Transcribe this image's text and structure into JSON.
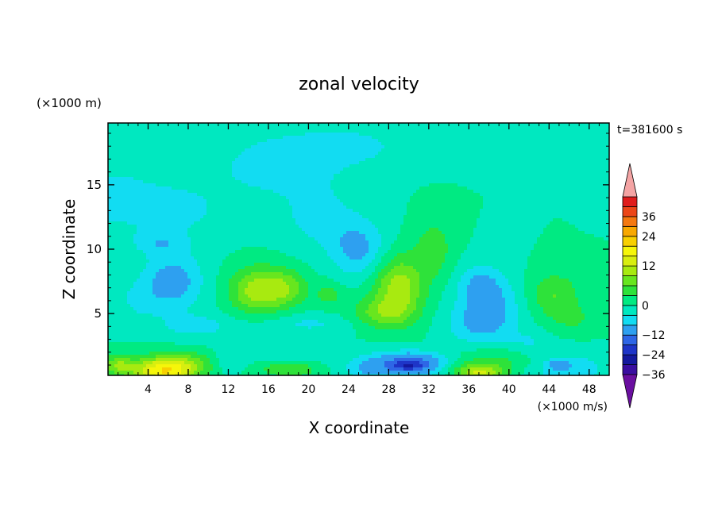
{
  "chart_data": {
    "type": "heatmap",
    "title": "zonal velocity",
    "xlabel": "X coordinate",
    "ylabel": "Z coordinate",
    "x_unit": "(×1000 m/s)",
    "y_unit": "(×1000 m)",
    "time_label": "t=381600 s",
    "xlim": [
      0,
      50
    ],
    "ylim": [
      0.2,
      19.8
    ],
    "x_ticks": [
      "4",
      "8",
      "12",
      "16",
      "20",
      "24",
      "28",
      "32",
      "36",
      "40",
      "44",
      "48"
    ],
    "y_ticks": [
      "5",
      "10",
      "15"
    ],
    "colorbar": {
      "ticks": [
        "36",
        "24",
        "12",
        "0",
        "−12",
        "−24",
        "−36"
      ],
      "levels": [
        {
          "v": -42,
          "color": "#6a0fa0"
        },
        {
          "v": -36,
          "color": "#3a0ea0"
        },
        {
          "v": -30,
          "color": "#14199e"
        },
        {
          "v": -24,
          "color": "#1e35c8"
        },
        {
          "v": -18,
          "color": "#2e66e6"
        },
        {
          "v": -12,
          "color": "#2ea0f0"
        },
        {
          "v": -6,
          "color": "#12dcf2"
        },
        {
          "v": -3,
          "color": "#00e8c0"
        },
        {
          "v": 0,
          "color": "#00ea82"
        },
        {
          "v": 3,
          "color": "#2ee23a"
        },
        {
          "v": 6,
          "color": "#68e61e"
        },
        {
          "v": 9,
          "color": "#a8ea10"
        },
        {
          "v": 12,
          "color": "#d8ee10"
        },
        {
          "v": 15,
          "color": "#f6f60a"
        },
        {
          "v": 18,
          "color": "#f8d000"
        },
        {
          "v": 24,
          "color": "#f8a800"
        },
        {
          "v": 30,
          "color": "#f47810"
        },
        {
          "v": 36,
          "color": "#ec4618"
        },
        {
          "v": 42,
          "color": "#e01c1c"
        },
        {
          "v": 48,
          "color": "#f4a4a4"
        }
      ]
    },
    "features": [
      {
        "x": 0,
        "z": 14,
        "sx": 6,
        "sz": 3,
        "a": -4
      },
      {
        "x": 8,
        "z": 13,
        "sx": 5,
        "sz": 2.5,
        "a": -3
      },
      {
        "x": 5,
        "z": 10.5,
        "sx": 2.5,
        "sz": 0.9,
        "a": -4
      },
      {
        "x": 6.5,
        "z": 7.5,
        "sx": 3,
        "sz": 2.2,
        "a": -8
      },
      {
        "x": 3,
        "z": 6,
        "sx": 2.5,
        "sz": 1.6,
        "a": -3
      },
      {
        "x": 17,
        "z": 16.5,
        "sx": 6,
        "sz": 2.3,
        "a": -5
      },
      {
        "x": 21,
        "z": 12.5,
        "sx": 4,
        "sz": 2.5,
        "a": -4
      },
      {
        "x": 24,
        "z": 18,
        "sx": 6,
        "sz": 1.6,
        "a": -4
      },
      {
        "x": 25,
        "z": 10,
        "sx": 2.8,
        "sz": 2.2,
        "a": -7
      },
      {
        "x": 20,
        "z": 4.2,
        "sx": 5,
        "sz": 0.8,
        "a": -3.5
      },
      {
        "x": 9,
        "z": 4,
        "sx": 4,
        "sz": 1,
        "a": -4
      },
      {
        "x": 15,
        "z": 6.8,
        "sx": 2.8,
        "sz": 1.8,
        "a": 11
      },
      {
        "x": 18,
        "z": 7,
        "sx": 2,
        "sz": 1.4,
        "a": 6
      },
      {
        "x": 29,
        "z": 7,
        "sx": 2.5,
        "sz": 2.5,
        "a": 11
      },
      {
        "x": 27,
        "z": 5,
        "sx": 3,
        "sz": 1.2,
        "a": 6
      },
      {
        "x": 32.5,
        "z": 10,
        "sx": 1.8,
        "sz": 2.2,
        "a": 5
      },
      {
        "x": 22,
        "z": 6.5,
        "sx": 1.5,
        "sz": 1,
        "a": 4
      },
      {
        "x": 38,
        "z": 5.5,
        "sx": 3,
        "sz": 2.5,
        "a": -8
      },
      {
        "x": 37,
        "z": 7.5,
        "sx": 2,
        "sz": 1.3,
        "a": -4
      },
      {
        "x": 36,
        "z": 4,
        "sx": 3,
        "sz": 1.5,
        "a": -3
      },
      {
        "x": 44.5,
        "z": 6.5,
        "sx": 2.5,
        "sz": 1.7,
        "a": 6
      },
      {
        "x": 46.5,
        "z": 4.5,
        "sx": 2.5,
        "sz": 1.2,
        "a": 3
      },
      {
        "x": 46,
        "z": 0.6,
        "sx": 4,
        "sz": 1.5,
        "a": -5
      },
      {
        "x": 45,
        "z": 1,
        "sx": 1,
        "sz": 0.35,
        "a": -8
      },
      {
        "x": 5.5,
        "z": 0.5,
        "sx": 3.2,
        "sz": 1.1,
        "a": 17
      },
      {
        "x": 8,
        "z": 1.2,
        "sx": 3,
        "sz": 0.9,
        "a": 5
      },
      {
        "x": 18,
        "z": 0.7,
        "sx": 3,
        "sz": 0.7,
        "a": 6
      },
      {
        "x": 18,
        "z": 2,
        "sx": 6,
        "sz": 0.9,
        "a": -3
      },
      {
        "x": 30,
        "z": 1.1,
        "sx": 3.5,
        "sz": 0.9,
        "a": -14
      },
      {
        "x": 30,
        "z": 1,
        "sx": 1.5,
        "sz": 0.4,
        "a": -12
      },
      {
        "x": 26,
        "z": 0.6,
        "sx": 2.5,
        "sz": 0.9,
        "a": -5
      },
      {
        "x": 37,
        "z": 0.4,
        "sx": 2.5,
        "sz": 0.7,
        "a": 12
      },
      {
        "x": 39,
        "z": 1.5,
        "sx": 4,
        "sz": 1,
        "a": 4
      },
      {
        "x": 42,
        "z": 2.7,
        "sx": 2.5,
        "sz": 1.1,
        "a": -3
      },
      {
        "x": 49,
        "z": 17,
        "sx": 1.5,
        "sz": 2,
        "a": -3
      },
      {
        "x": 12,
        "z": 1.2,
        "sx": 1.5,
        "sz": 0.8,
        "a": -3
      },
      {
        "x": 1,
        "z": 1,
        "sx": 1.5,
        "sz": 0.8,
        "a": 8
      }
    ]
  }
}
